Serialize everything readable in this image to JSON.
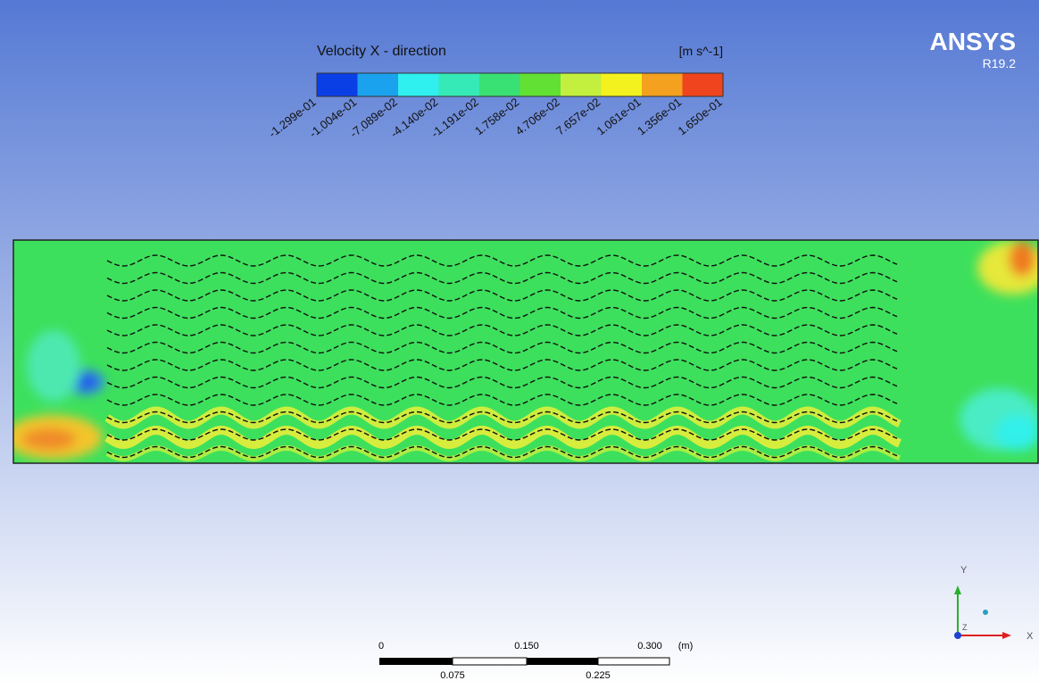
{
  "legend": {
    "title": "Velocity X - direction",
    "unit": "[m s^-1]",
    "colors": [
      "#0b3fe6",
      "#1aa2ef",
      "#2fefef",
      "#35eab6",
      "#39e073",
      "#62e034",
      "#c3f03e",
      "#f3f21f",
      "#f3a11f",
      "#f0441f"
    ],
    "labels": [
      "-1.299e-01",
      "-1.004e-01",
      "-7.089e-02",
      "-4.140e-02",
      "-1.191e-02",
      "1.758e-02",
      "4.706e-02",
      "7.657e-02",
      "1.061e-01",
      "1.356e-01",
      "1.650e-01"
    ]
  },
  "logo": {
    "name": "ANSYS",
    "version": "R19.2"
  },
  "scale_bar": {
    "top_labels": [
      "0",
      "0.150",
      "0.300"
    ],
    "unit": "(m)",
    "bottom_labels": [
      "0.075",
      "0.225"
    ]
  },
  "triad": {
    "y": "Y",
    "x": "X",
    "z": "Z"
  }
}
